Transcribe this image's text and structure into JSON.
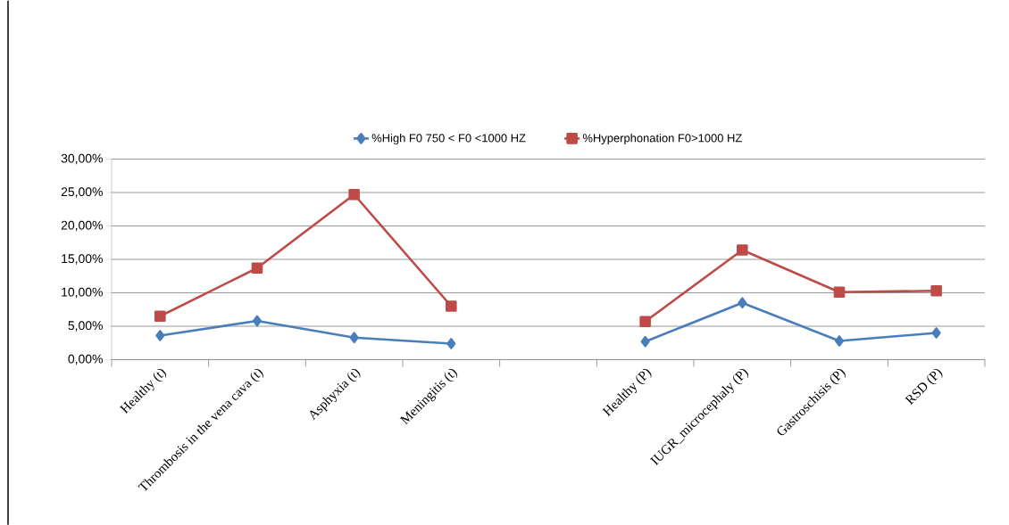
{
  "chart_data": {
    "type": "line",
    "categories": [
      "Healthy (t)",
      "Thrombosis in the vena cava (t)",
      "Asphyxia (t)",
      "Meningitis (t)",
      null,
      "Healthy (P)",
      "IUGR_microcephaly (P)",
      "Gastroschisis (P)",
      "RSD (P)"
    ],
    "series": [
      {
        "name": "%High F0 750 < F0 <1000 HZ",
        "color": "#4a7ebb",
        "marker": "diamond",
        "values": [
          3.6,
          5.8,
          3.3,
          2.4,
          null,
          2.7,
          8.5,
          2.8,
          4.0
        ]
      },
      {
        "name": "%Hyperphonation F0>1000 HZ",
        "color": "#be4b48",
        "marker": "square",
        "values": [
          6.5,
          13.7,
          24.7,
          8.0,
          null,
          5.7,
          16.4,
          10.1,
          10.3
        ]
      }
    ],
    "ylim": [
      0,
      30
    ],
    "yticks": [
      {
        "value": 0,
        "label": "0,00%"
      },
      {
        "value": 5,
        "label": "5,00%"
      },
      {
        "value": 10,
        "label": "10,00%"
      },
      {
        "value": 15,
        "label": "15,00%"
      },
      {
        "value": 20,
        "label": "20,00%"
      },
      {
        "value": 25,
        "label": "25,00%"
      },
      {
        "value": 30,
        "label": "30,00%"
      }
    ],
    "grid": "y",
    "legend": "top",
    "line_style": "solid"
  }
}
